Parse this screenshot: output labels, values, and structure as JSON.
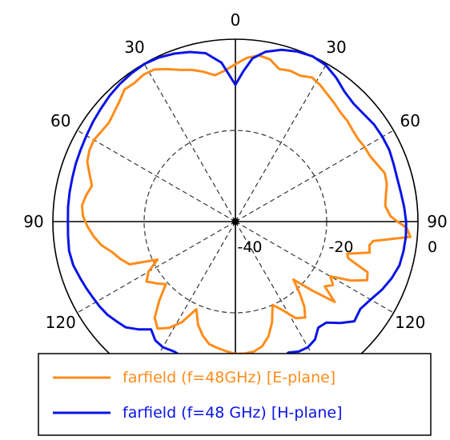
{
  "colors": {
    "e_plane": "#ff8c1a",
    "h_plane": "#0a14e6",
    "axis": "#000000",
    "grid": "#333333"
  },
  "chart_data": {
    "type": "polar",
    "title": "",
    "angle_unit": "degrees",
    "angle_zero": "top",
    "angle_labels": [
      {
        "angle": 0,
        "text": "0"
      },
      {
        "angle": -30,
        "text": "30"
      },
      {
        "angle": 30,
        "text": "30"
      },
      {
        "angle": -60,
        "text": "60"
      },
      {
        "angle": 60,
        "text": "60"
      },
      {
        "angle": -90,
        "text": "90"
      },
      {
        "angle": 90,
        "text": "90"
      },
      {
        "angle": -120,
        "text": "120"
      },
      {
        "angle": 120,
        "text": "120"
      }
    ],
    "radial_range_db": [
      -40,
      0
    ],
    "radial_ticks": [
      {
        "value": -40,
        "text": "-40"
      },
      {
        "value": -20,
        "text": "-20"
      },
      {
        "value": 0,
        "text": "0"
      }
    ],
    "grid": true,
    "legend_position": "bottom",
    "series": [
      {
        "name": "farfield (f=48GHz) [E-plane]",
        "color_key": "e_plane",
        "points": [
          [
            0,
            -5.5
          ],
          [
            4,
            -4.0
          ],
          [
            8,
            -3.2
          ],
          [
            12,
            -3.6
          ],
          [
            16,
            -5.2
          ],
          [
            20,
            -4.8
          ],
          [
            24,
            -5.0
          ],
          [
            28,
            -4.2
          ],
          [
            32,
            -4.8
          ],
          [
            36,
            -5.6
          ],
          [
            40,
            -6.2
          ],
          [
            44,
            -6.8
          ],
          [
            48,
            -7.0
          ],
          [
            52,
            -7.4
          ],
          [
            56,
            -7.6
          ],
          [
            60,
            -7.3
          ],
          [
            64,
            -7.2
          ],
          [
            68,
            -6.5
          ],
          [
            72,
            -5.6
          ],
          [
            76,
            -5.8
          ],
          [
            80,
            -6.5
          ],
          [
            84,
            -7.0
          ],
          [
            88,
            -6.0
          ],
          [
            90,
            -4.5
          ],
          [
            92,
            -2.5
          ],
          [
            95,
            -1.5
          ],
          [
            98,
            -9.5
          ],
          [
            100,
            -10.2
          ],
          [
            103,
            -9.8
          ],
          [
            106,
            -14.5
          ],
          [
            108,
            -14.0
          ],
          [
            111,
            -9.0
          ],
          [
            114,
            -8.4
          ],
          [
            117,
            -11.5
          ],
          [
            120,
            -16.0
          ],
          [
            123,
            -14.5
          ],
          [
            126,
            -15.8
          ],
          [
            129,
            -12.0
          ],
          [
            132,
            -17.5
          ],
          [
            135,
            -22.0
          ],
          [
            138,
            -19.0
          ],
          [
            141,
            -16.0
          ],
          [
            144,
            -14.0
          ],
          [
            148,
            -15.0
          ],
          [
            152,
            -18.0
          ],
          [
            156,
            -20.0
          ],
          [
            160,
            -16.5
          ],
          [
            164,
            -13.8
          ],
          [
            168,
            -12.0
          ],
          [
            172,
            -11.2
          ],
          [
            176,
            -11.0
          ],
          [
            180,
            -11.0
          ],
          [
            184,
            -11.5
          ],
          [
            188,
            -12.0
          ],
          [
            192,
            -12.5
          ],
          [
            196,
            -14.0
          ],
          [
            200,
            -16.0
          ],
          [
            204,
            -19.0
          ],
          [
            208,
            -15.0
          ],
          [
            212,
            -12.5
          ],
          [
            216,
            -11.0
          ],
          [
            220,
            -12.5
          ],
          [
            224,
            -16.0
          ],
          [
            228,
            -19.5
          ],
          [
            232,
            -18.0
          ],
          [
            236,
            -16.5
          ],
          [
            240,
            -18.0
          ],
          [
            244,
            -21.0
          ],
          [
            248,
            -15.0
          ],
          [
            252,
            -13.5
          ],
          [
            256,
            -12.2
          ],
          [
            260,
            -10.2
          ],
          [
            264,
            -8.8
          ],
          [
            268,
            -7.6
          ],
          [
            272,
            -6.6
          ],
          [
            276,
            -6.2
          ],
          [
            280,
            -6.8
          ],
          [
            284,
            -7.6
          ],
          [
            288,
            -6.4
          ],
          [
            292,
            -5.0
          ],
          [
            296,
            -4.4
          ],
          [
            300,
            -4.2
          ],
          [
            304,
            -4.6
          ],
          [
            308,
            -4.8
          ],
          [
            312,
            -4.2
          ],
          [
            316,
            -3.4
          ],
          [
            320,
            -2.2
          ],
          [
            324,
            -2.4
          ],
          [
            328,
            -2.0
          ],
          [
            332,
            -2.2
          ],
          [
            336,
            -3.4
          ],
          [
            340,
            -4.6
          ],
          [
            344,
            -5.4
          ],
          [
            348,
            -6.4
          ],
          [
            352,
            -7.6
          ],
          [
            356,
            -6.8
          ],
          [
            360,
            -5.5
          ]
        ]
      },
      {
        "name": "farfield (f=48 GHz) [H-plane]",
        "color_key": "h_plane",
        "points": [
          [
            0,
            -10.0
          ],
          [
            3,
            -7.0
          ],
          [
            6,
            -4.0
          ],
          [
            10,
            -2.2
          ],
          [
            15,
            -1.0
          ],
          [
            20,
            -0.3
          ],
          [
            25,
            0.0
          ],
          [
            30,
            -0.4
          ],
          [
            35,
            -1.5
          ],
          [
            40,
            -2.8
          ],
          [
            45,
            -3.4
          ],
          [
            50,
            -3.3
          ],
          [
            55,
            -2.9
          ],
          [
            60,
            -2.8
          ],
          [
            65,
            -2.8
          ],
          [
            70,
            -3.1
          ],
          [
            75,
            -3.3
          ],
          [
            80,
            -3.2
          ],
          [
            85,
            -2.9
          ],
          [
            90,
            -2.6
          ],
          [
            95,
            -2.5
          ],
          [
            100,
            -2.6
          ],
          [
            105,
            -2.8
          ],
          [
            110,
            -3.6
          ],
          [
            115,
            -4.6
          ],
          [
            120,
            -5.8
          ],
          [
            125,
            -6.6
          ],
          [
            130,
            -6.0
          ],
          [
            134,
            -8.0
          ],
          [
            138,
            -10.2
          ],
          [
            142,
            -10.5
          ],
          [
            146,
            -8.8
          ],
          [
            150,
            -8.2
          ],
          [
            154,
            -8.3
          ],
          [
            158,
            -9.0
          ],
          [
            162,
            -8.2
          ],
          [
            166,
            -6.8
          ],
          [
            170,
            -5.6
          ],
          [
            175,
            -4.8
          ],
          [
            180,
            -4.8
          ],
          [
            185,
            -5.0
          ],
          [
            190,
            -5.4
          ],
          [
            195,
            -6.5
          ],
          [
            200,
            -8.0
          ],
          [
            205,
            -8.5
          ],
          [
            210,
            -8.2
          ],
          [
            214,
            -8.6
          ],
          [
            218,
            -10.0
          ],
          [
            222,
            -8.2
          ],
          [
            226,
            -6.6
          ],
          [
            230,
            -6.0
          ],
          [
            234,
            -5.3
          ],
          [
            238,
            -4.9
          ],
          [
            242,
            -4.6
          ],
          [
            246,
            -4.2
          ],
          [
            250,
            -3.8
          ],
          [
            255,
            -3.2
          ],
          [
            260,
            -3.0
          ],
          [
            265,
            -3.2
          ],
          [
            270,
            -3.3
          ],
          [
            275,
            -3.2
          ],
          [
            280,
            -3.1
          ],
          [
            285,
            -3.0
          ],
          [
            290,
            -2.8
          ],
          [
            295,
            -2.6
          ],
          [
            300,
            -2.3
          ],
          [
            305,
            -1.9
          ],
          [
            310,
            -1.5
          ],
          [
            315,
            -1.0
          ],
          [
            320,
            -0.6
          ],
          [
            325,
            -0.3
          ],
          [
            330,
            -0.1
          ],
          [
            335,
            -0.3
          ],
          [
            340,
            -0.8
          ],
          [
            345,
            -1.5
          ],
          [
            350,
            -2.5
          ],
          [
            355,
            -5.0
          ],
          [
            360,
            -10.0
          ]
        ]
      }
    ]
  }
}
